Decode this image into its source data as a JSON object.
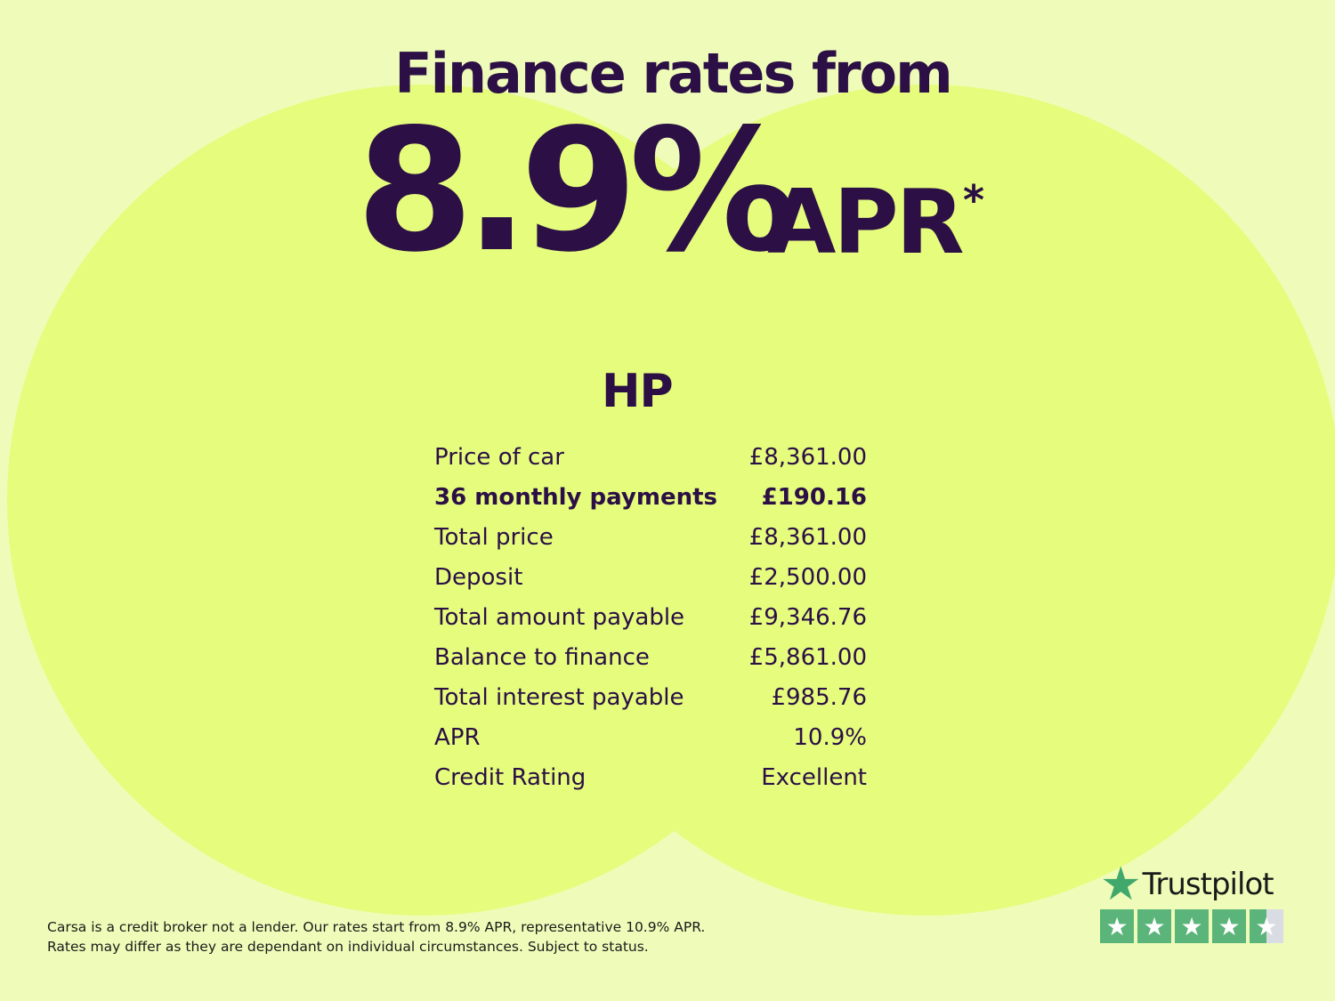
{
  "headline": "Finance rates from",
  "rate": "8.9%",
  "rate_suffix": "APR",
  "asterisk": "*",
  "product": "HP",
  "rows": [
    {
      "label": "Price of car",
      "value": "£8,361.00",
      "bold": false
    },
    {
      "label": "36 monthly payments",
      "value": "£190.16",
      "bold": true
    },
    {
      "label": "Total price",
      "value": "£8,361.00",
      "bold": false
    },
    {
      "label": "Deposit",
      "value": "£2,500.00",
      "bold": false
    },
    {
      "label": "Total amount payable",
      "value": "£9,346.76",
      "bold": false
    },
    {
      "label": "Balance to finance",
      "value": "£5,861.00",
      "bold": false
    },
    {
      "label": "Total interest payable",
      "value": "£985.76",
      "bold": false
    },
    {
      "label": "APR",
      "value": "10.9%",
      "bold": false
    },
    {
      "label": "Credit Rating",
      "value": "Excellent",
      "bold": false
    }
  ],
  "disclaimer": [
    "Carsa is a credit broker not a lender. Our rates start from 8.9% APR, representative 10.9% APR.",
    "Rates may differ as they are dependant on individual circumstances. Subject to status."
  ],
  "trustpilot": {
    "name": "Trustpilot",
    "rating": 4.5,
    "icon": "star-icon",
    "color": "#5bb47a"
  },
  "colors": {
    "background": "#effcb9",
    "circles": "#e5fc7d",
    "text": "#2b0f45"
  }
}
